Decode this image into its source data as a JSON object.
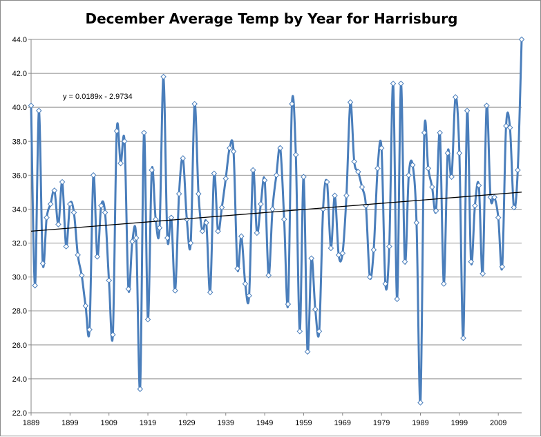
{
  "chart_data": {
    "type": "line",
    "title": "December Average Temp by Year for Harrisburg",
    "xlabel": "",
    "ylabel": "",
    "x_tick_labels": [
      "1889",
      "1899",
      "1909",
      "1919",
      "1929",
      "1939",
      "1949",
      "1959",
      "1969",
      "1979",
      "1989",
      "1999",
      "2009"
    ],
    "y_tick_labels": [
      "22.0",
      "24.0",
      "26.0",
      "28.0",
      "30.0",
      "32.0",
      "34.0",
      "36.0",
      "38.0",
      "40.0",
      "42.0",
      "44.0"
    ],
    "xlim": [
      1889,
      2015
    ],
    "ylim": [
      22,
      44
    ],
    "grid": "horizontal",
    "legend": "none",
    "series_color": "#4a7ebb",
    "trendline": {
      "label": "y = 0.0189x - 2.9734",
      "start": [
        1889,
        32.7
      ],
      "end": [
        2015,
        35.0
      ]
    },
    "series": [
      {
        "x_start": 1889,
        "values": [
          40.1,
          29.5,
          39.8,
          30.8,
          33.5,
          34.3,
          35.1,
          33.1,
          35.6,
          31.8,
          34.3,
          33.8,
          31.3,
          30.1,
          28.3,
          26.9,
          36.0,
          31.2,
          34.2,
          33.8,
          29.8,
          26.6,
          38.6,
          36.7,
          38.0,
          29.3,
          32.1,
          32.3,
          23.4,
          38.5,
          27.5,
          36.3,
          33.4,
          32.9,
          41.8,
          32.3,
          33.5,
          29.2,
          34.9,
          37.0,
          33.4,
          32.0,
          40.2,
          34.9,
          32.7,
          33.2,
          29.1,
          36.1,
          32.7,
          34.1,
          35.8,
          37.6,
          37.4,
          30.5,
          32.4,
          29.6,
          28.9,
          36.3,
          32.6,
          34.3,
          35.7,
          30.1,
          34.0,
          36.0,
          37.6,
          33.4,
          28.4,
          40.2,
          37.2,
          26.8,
          35.9,
          25.6,
          31.1,
          28.1,
          26.8,
          34.0,
          35.6,
          31.7,
          34.8,
          31.3,
          31.4,
          34.8,
          40.3,
          36.8,
          36.2,
          35.3,
          34.2,
          30.0,
          31.6,
          36.4,
          37.6,
          29.6,
          31.8,
          41.4,
          28.7,
          41.4,
          30.9,
          36.0,
          36.6,
          33.2,
          22.6,
          38.5,
          36.4,
          35.3,
          33.9,
          38.5,
          29.6,
          37.3,
          35.9,
          40.6,
          37.3,
          26.4,
          39.8,
          30.9,
          34.2,
          35.4,
          30.2,
          40.1,
          34.7,
          34.7,
          33.5,
          30.6,
          38.9,
          38.8,
          34.1,
          36.3,
          44.0
        ]
      }
    ]
  }
}
